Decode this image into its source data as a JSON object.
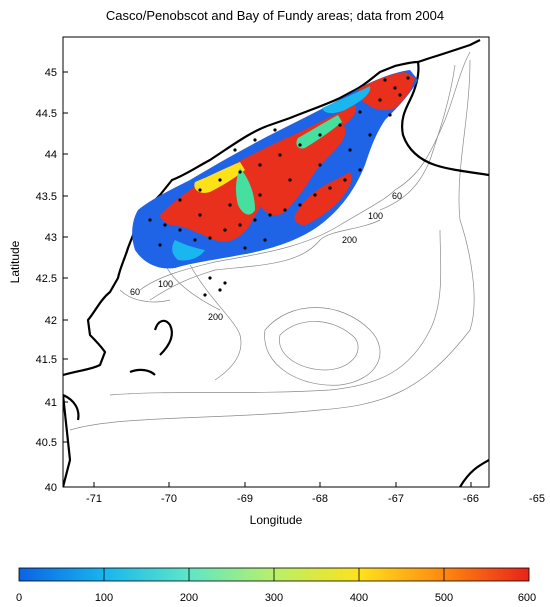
{
  "title": "Casco/Penobscot and Bay of Fundy areas; data from 2004",
  "xlabel": "Longitude",
  "ylabel": "Latitude",
  "x_ticks": [
    "-71",
    "-70",
    "-69",
    "-68",
    "-67",
    "-66",
    "-65"
  ],
  "y_ticks": [
    "40",
    "40.5",
    "41",
    "41.5",
    "42",
    "42.5",
    "43",
    "43.5",
    "44",
    "44.5",
    "45"
  ],
  "contour_labels": [
    "60",
    "100",
    "200",
    "60",
    "100",
    "200"
  ],
  "colorbar": {
    "ticks": [
      "0",
      "100",
      "200",
      "300",
      "400",
      "500",
      "600"
    ],
    "min": 0,
    "max": 600
  },
  "colors": {
    "low": "#1f63e6",
    "mid": "#45e0a0",
    "high": "#e8301c",
    "land_line": "#000000"
  }
}
